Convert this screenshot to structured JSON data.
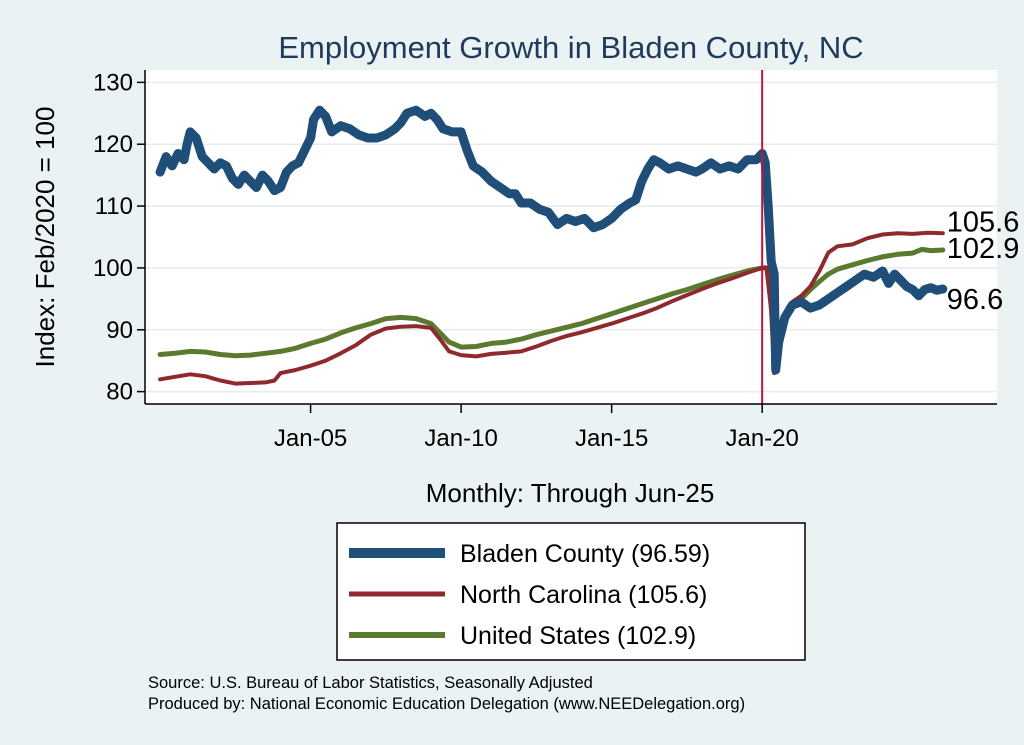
{
  "chart_data": {
    "type": "line",
    "title": "Employment Growth in Bladen  County, NC",
    "ylabel": "Index: Feb/2020 = 100",
    "xlabel": "Monthly: Through Jun-25",
    "ylim": [
      78,
      132
    ],
    "xlim": [
      1999.5,
      2027.8
    ],
    "yticks": [
      80,
      90,
      100,
      110,
      120,
      130
    ],
    "xticks": [
      {
        "year": 2005,
        "label": "Jan-05"
      },
      {
        "year": 2010,
        "label": "Jan-10"
      },
      {
        "year": 2015,
        "label": "Jan-15"
      },
      {
        "year": 2020,
        "label": "Jan-20"
      }
    ],
    "vline_year": 2020,
    "vline_color": "#c0143c",
    "series": [
      {
        "name": "Bladen  County",
        "legend": "Bladen  County (96.59)",
        "color": "#1f4e79",
        "stroke": 9,
        "end_label": "96.6",
        "points": [
          [
            2000.0,
            115.5
          ],
          [
            2000.2,
            118
          ],
          [
            2000.4,
            116.5
          ],
          [
            2000.6,
            118.5
          ],
          [
            2000.8,
            117.5
          ],
          [
            2000.9,
            120
          ],
          [
            2001.0,
            122
          ],
          [
            2001.2,
            121
          ],
          [
            2001.4,
            118
          ],
          [
            2001.6,
            117
          ],
          [
            2001.8,
            116
          ],
          [
            2002.0,
            117
          ],
          [
            2002.2,
            116.5
          ],
          [
            2002.4,
            114.5
          ],
          [
            2002.6,
            113.5
          ],
          [
            2002.8,
            115
          ],
          [
            2003.0,
            114
          ],
          [
            2003.2,
            113
          ],
          [
            2003.4,
            115
          ],
          [
            2003.6,
            114
          ],
          [
            2003.8,
            112.5
          ],
          [
            2004.0,
            113
          ],
          [
            2004.2,
            115.5
          ],
          [
            2004.4,
            116.5
          ],
          [
            2004.6,
            117
          ],
          [
            2004.8,
            119
          ],
          [
            2005.0,
            121
          ],
          [
            2005.1,
            124
          ],
          [
            2005.3,
            125.5
          ],
          [
            2005.5,
            124.5
          ],
          [
            2005.7,
            122
          ],
          [
            2006.0,
            123
          ],
          [
            2006.3,
            122.5
          ],
          [
            2006.6,
            121.5
          ],
          [
            2006.9,
            121
          ],
          [
            2007.2,
            121
          ],
          [
            2007.5,
            121.5
          ],
          [
            2007.8,
            122.5
          ],
          [
            2008.0,
            123.5
          ],
          [
            2008.2,
            125
          ],
          [
            2008.5,
            125.5
          ],
          [
            2008.8,
            124.5
          ],
          [
            2009.0,
            125
          ],
          [
            2009.2,
            124
          ],
          [
            2009.4,
            122.5
          ],
          [
            2009.7,
            122
          ],
          [
            2010.0,
            122
          ],
          [
            2010.2,
            119
          ],
          [
            2010.4,
            116.5
          ],
          [
            2010.7,
            115.5
          ],
          [
            2011.0,
            114
          ],
          [
            2011.3,
            113
          ],
          [
            2011.6,
            112
          ],
          [
            2011.8,
            112
          ],
          [
            2012.0,
            110.5
          ],
          [
            2012.3,
            110.5
          ],
          [
            2012.6,
            109.5
          ],
          [
            2012.9,
            109
          ],
          [
            2013.2,
            107
          ],
          [
            2013.5,
            108
          ],
          [
            2013.8,
            107.5
          ],
          [
            2014.1,
            108
          ],
          [
            2014.4,
            106.5
          ],
          [
            2014.7,
            107
          ],
          [
            2015.0,
            108
          ],
          [
            2015.3,
            109.5
          ],
          [
            2015.6,
            110.5
          ],
          [
            2015.8,
            111
          ],
          [
            2016.0,
            114
          ],
          [
            2016.2,
            116
          ],
          [
            2016.4,
            117.5
          ],
          [
            2016.6,
            117
          ],
          [
            2016.9,
            116
          ],
          [
            2017.2,
            116.5
          ],
          [
            2017.5,
            116
          ],
          [
            2017.8,
            115.5
          ],
          [
            2018.0,
            116
          ],
          [
            2018.3,
            117
          ],
          [
            2018.6,
            116
          ],
          [
            2018.9,
            116.5
          ],
          [
            2019.2,
            116
          ],
          [
            2019.5,
            117.5
          ],
          [
            2019.8,
            117.5
          ],
          [
            2020.0,
            118.5
          ],
          [
            2020.1,
            117
          ],
          [
            2020.2,
            110
          ],
          [
            2020.3,
            101
          ],
          [
            2020.4,
            99
          ],
          [
            2020.45,
            83.5
          ],
          [
            2020.55,
            88
          ],
          [
            2020.75,
            92
          ],
          [
            2021.0,
            94
          ],
          [
            2021.3,
            94.5
          ],
          [
            2021.6,
            93.5
          ],
          [
            2021.9,
            94
          ],
          [
            2022.2,
            95
          ],
          [
            2022.5,
            96
          ],
          [
            2022.8,
            97
          ],
          [
            2023.1,
            98
          ],
          [
            2023.4,
            99
          ],
          [
            2023.7,
            98.5
          ],
          [
            2024.0,
            99.5
          ],
          [
            2024.2,
            97.5
          ],
          [
            2024.4,
            99
          ],
          [
            2024.6,
            98
          ],
          [
            2024.8,
            97
          ],
          [
            2025.0,
            96.5
          ],
          [
            2025.2,
            95.5
          ],
          [
            2025.4,
            96.5
          ],
          [
            2025.6,
            96.8
          ],
          [
            2025.8,
            96.4
          ],
          [
            2026.0,
            96.6
          ]
        ]
      },
      {
        "name": "North Carolina",
        "legend": "North Carolina (105.6)",
        "color": "#8e2a2e",
        "stroke": 4,
        "end_label": "105.6",
        "points": [
          [
            2000.0,
            82
          ],
          [
            2000.5,
            82.4
          ],
          [
            2001.0,
            82.8
          ],
          [
            2001.5,
            82.5
          ],
          [
            2002.0,
            81.8
          ],
          [
            2002.5,
            81.3
          ],
          [
            2003.0,
            81.4
          ],
          [
            2003.5,
            81.5
          ],
          [
            2003.8,
            81.8
          ],
          [
            2004.0,
            83
          ],
          [
            2004.5,
            83.5
          ],
          [
            2005.0,
            84.2
          ],
          [
            2005.5,
            85.0
          ],
          [
            2006.0,
            86.2
          ],
          [
            2006.5,
            87.5
          ],
          [
            2007.0,
            89.2
          ],
          [
            2007.5,
            90.2
          ],
          [
            2008.0,
            90.5
          ],
          [
            2008.5,
            90.6
          ],
          [
            2009.0,
            90.3
          ],
          [
            2009.3,
            88.5
          ],
          [
            2009.6,
            86.5
          ],
          [
            2010.0,
            85.9
          ],
          [
            2010.5,
            85.7
          ],
          [
            2011.0,
            86.1
          ],
          [
            2011.5,
            86.3
          ],
          [
            2012.0,
            86.5
          ],
          [
            2012.5,
            87.3
          ],
          [
            2013.0,
            88.2
          ],
          [
            2013.5,
            89.0
          ],
          [
            2014.0,
            89.6
          ],
          [
            2014.5,
            90.3
          ],
          [
            2015.0,
            91.0
          ],
          [
            2015.5,
            91.8
          ],
          [
            2016.0,
            92.6
          ],
          [
            2016.5,
            93.5
          ],
          [
            2017.0,
            94.6
          ],
          [
            2017.5,
            95.6
          ],
          [
            2018.0,
            96.6
          ],
          [
            2018.5,
            97.5
          ],
          [
            2019.0,
            98.3
          ],
          [
            2019.5,
            99.2
          ],
          [
            2020.0,
            100
          ],
          [
            2020.15,
            100
          ],
          [
            2020.3,
            93
          ],
          [
            2020.4,
            83
          ],
          [
            2020.6,
            88
          ],
          [
            2020.8,
            92
          ],
          [
            2021.0,
            94.5
          ],
          [
            2021.3,
            95.5
          ],
          [
            2021.6,
            97
          ],
          [
            2021.9,
            99.5
          ],
          [
            2022.2,
            102.5
          ],
          [
            2022.5,
            103.5
          ],
          [
            2023.0,
            103.8
          ],
          [
            2023.5,
            104.8
          ],
          [
            2024.0,
            105.4
          ],
          [
            2024.5,
            105.6
          ],
          [
            2025.0,
            105.5
          ],
          [
            2025.5,
            105.7
          ],
          [
            2026.0,
            105.6
          ]
        ]
      },
      {
        "name": "United States",
        "legend": "United States (102.9)",
        "color": "#5a7a2e",
        "stroke": 5,
        "end_label": "102.9",
        "points": [
          [
            2000.0,
            86
          ],
          [
            2000.5,
            86.2
          ],
          [
            2001.0,
            86.5
          ],
          [
            2001.5,
            86.4
          ],
          [
            2002.0,
            86.0
          ],
          [
            2002.5,
            85.8
          ],
          [
            2003.0,
            85.9
          ],
          [
            2003.5,
            86.2
          ],
          [
            2004.0,
            86.5
          ],
          [
            2004.5,
            87.0
          ],
          [
            2005.0,
            87.8
          ],
          [
            2005.5,
            88.5
          ],
          [
            2006.0,
            89.5
          ],
          [
            2006.5,
            90.3
          ],
          [
            2007.0,
            91.0
          ],
          [
            2007.5,
            91.8
          ],
          [
            2008.0,
            92.0
          ],
          [
            2008.5,
            91.8
          ],
          [
            2009.0,
            91.0
          ],
          [
            2009.3,
            89.5
          ],
          [
            2009.6,
            88.0
          ],
          [
            2010.0,
            87.2
          ],
          [
            2010.5,
            87.3
          ],
          [
            2011.0,
            87.8
          ],
          [
            2011.5,
            88.0
          ],
          [
            2012.0,
            88.5
          ],
          [
            2012.5,
            89.2
          ],
          [
            2013.0,
            89.8
          ],
          [
            2013.5,
            90.4
          ],
          [
            2014.0,
            91.0
          ],
          [
            2014.5,
            91.8
          ],
          [
            2015.0,
            92.6
          ],
          [
            2015.5,
            93.4
          ],
          [
            2016.0,
            94.2
          ],
          [
            2016.5,
            95.0
          ],
          [
            2017.0,
            95.8
          ],
          [
            2017.5,
            96.5
          ],
          [
            2018.0,
            97.3
          ],
          [
            2018.5,
            98.1
          ],
          [
            2019.0,
            98.8
          ],
          [
            2019.5,
            99.5
          ],
          [
            2020.0,
            100
          ],
          [
            2020.15,
            100
          ],
          [
            2020.3,
            94
          ],
          [
            2020.4,
            86
          ],
          [
            2020.6,
            90
          ],
          [
            2020.8,
            92.5
          ],
          [
            2021.0,
            94
          ],
          [
            2021.3,
            95
          ],
          [
            2021.6,
            96.5
          ],
          [
            2021.9,
            97.8
          ],
          [
            2022.2,
            99
          ],
          [
            2022.5,
            99.8
          ],
          [
            2023.0,
            100.5
          ],
          [
            2023.5,
            101.2
          ],
          [
            2024.0,
            101.8
          ],
          [
            2024.5,
            102.2
          ],
          [
            2025.0,
            102.4
          ],
          [
            2025.3,
            103
          ],
          [
            2025.6,
            102.8
          ],
          [
            2026.0,
            102.9
          ]
        ]
      }
    ]
  },
  "source": {
    "line1": "Source: U.S. Bureau of Labor Statistics, Seasonally Adjusted",
    "line2": "Produced by: National Economic Education Delegation (www.NEEDelegation.org)"
  }
}
